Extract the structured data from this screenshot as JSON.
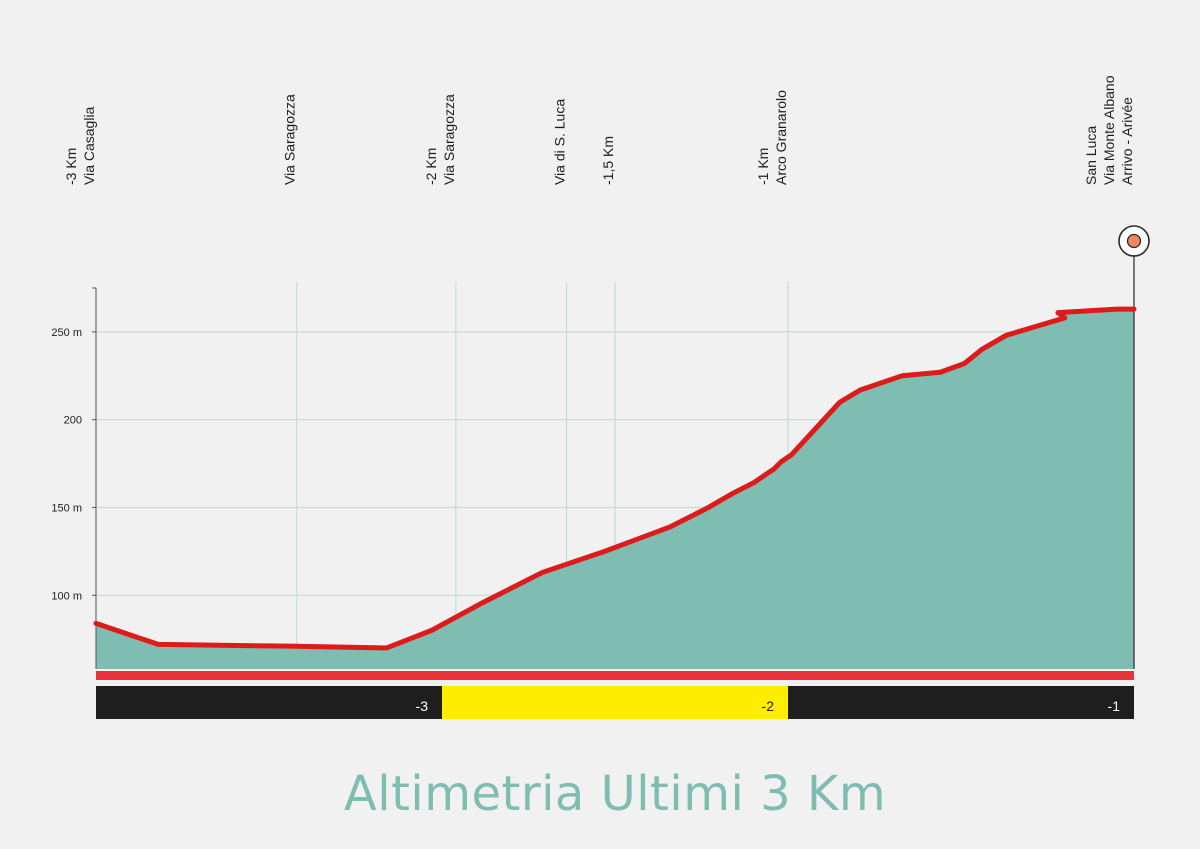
{
  "chart_data": {
    "type": "area",
    "title": "Altimetria Ultimi 3 Km",
    "xlabel": "",
    "ylabel": "",
    "xlim": [
      -3.0,
      0.0
    ],
    "ylim": [
      58,
      275
    ],
    "y_ticks": [
      {
        "value": 100,
        "label": "100 m"
      },
      {
        "value": 150,
        "label": "150 m"
      },
      {
        "value": 200,
        "label": "200"
      },
      {
        "value": 250,
        "label": "250 m"
      }
    ],
    "x": [
      -3.0,
      -2.82,
      -2.44,
      -2.16,
      -2.03,
      -1.89,
      -1.71,
      -1.53,
      -1.34,
      -1.23,
      -1.16,
      -1.1,
      -1.07,
      -1.04,
      -1.02,
      -0.99,
      -0.85,
      -0.79,
      -0.67,
      -0.56,
      -0.49,
      -0.44,
      -0.37,
      -0.2,
      -0.22,
      -0.05,
      0.0
    ],
    "series": [
      {
        "values": [
          84,
          72,
          71,
          70,
          80,
          95,
          113,
          125,
          139,
          150,
          158,
          164,
          168,
          172,
          176,
          180,
          210,
          217,
          225,
          227,
          232,
          240,
          248,
          258,
          261,
          263,
          263
        ]
      }
    ],
    "waypoints": [
      {
        "x": -3.0,
        "lines": [
          "-3 Km",
          "Via Casaglia"
        ]
      },
      {
        "x": -2.42,
        "lines": [
          "Via Saragozza"
        ]
      },
      {
        "x": -1.96,
        "lines": [
          "-2 Km",
          "Via Saragozza"
        ]
      },
      {
        "x": -1.64,
        "lines": [
          "Via di S. Luca"
        ]
      },
      {
        "x": -1.5,
        "lines": [
          "-1,5 Km"
        ]
      },
      {
        "x": -1.0,
        "lines": [
          "-1 Km",
          "Arco Granarolo"
        ]
      },
      {
        "x": 0.0,
        "lines": [
          "San Luca",
          "Via Monte Albano",
          "Arrivo - Arivée"
        ]
      }
    ],
    "km_bar": [
      {
        "from": -3.0,
        "to": -2.0,
        "label": "-3",
        "color": "#1e1e1e",
        "text_color": "#ffffff"
      },
      {
        "from": -2.0,
        "to": -1.0,
        "label": "-2",
        "color": "#ffed00",
        "text_color": "#1e1e1e"
      },
      {
        "from": -1.0,
        "to": 0.0,
        "label": "-1",
        "color": "#1e1e1e",
        "text_color": "#ffffff"
      }
    ],
    "grid": true,
    "colors": {
      "area": "#7fbcb1",
      "profile_line": "#dd1b1b",
      "base_band": "#e8333c",
      "grid": "#c8dcd6",
      "finish_marker": "#e98a62"
    }
  }
}
